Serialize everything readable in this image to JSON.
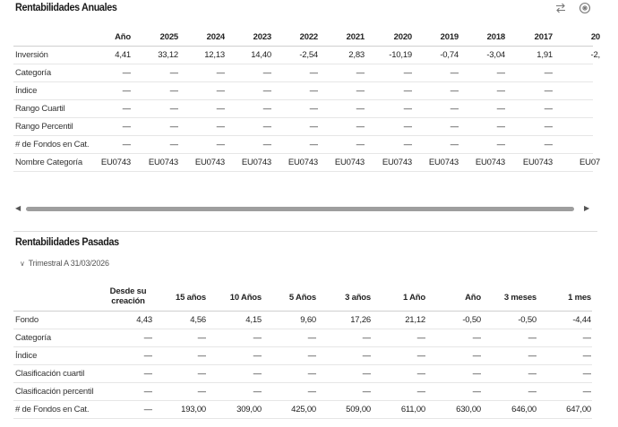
{
  "annual": {
    "title": "Rentabilidades Anuales",
    "columns": [
      "Año",
      "2025",
      "2024",
      "2023",
      "2022",
      "2021",
      "2020",
      "2019",
      "2018",
      "2017",
      "20"
    ],
    "rows": [
      {
        "label": "Inversión",
        "values": [
          "4,41",
          "33,12",
          "12,13",
          "14,40",
          "-2,54",
          "2,83",
          "-10,19",
          "-0,74",
          "-3,04",
          "1,91",
          "-2,"
        ]
      },
      {
        "label": "Categoría",
        "values": [
          "—",
          "—",
          "—",
          "—",
          "—",
          "—",
          "—",
          "—",
          "—",
          "—",
          ""
        ]
      },
      {
        "label": "Índice",
        "values": [
          "—",
          "—",
          "—",
          "—",
          "—",
          "—",
          "—",
          "—",
          "—",
          "—",
          ""
        ]
      },
      {
        "label": "Rango Cuartil",
        "values": [
          "—",
          "—",
          "—",
          "—",
          "—",
          "—",
          "—",
          "—",
          "—",
          "—",
          ""
        ]
      },
      {
        "label": "Rango Percentil",
        "values": [
          "—",
          "—",
          "—",
          "—",
          "—",
          "—",
          "—",
          "—",
          "—",
          "—",
          ""
        ]
      },
      {
        "label": "# de Fondos en Cat.",
        "values": [
          "—",
          "—",
          "—",
          "—",
          "—",
          "—",
          "—",
          "—",
          "—",
          "—",
          ""
        ]
      },
      {
        "label": "Nombre Categoría",
        "values": [
          "EU0743",
          "EU0743",
          "EU0743",
          "EU0743",
          "EU0743",
          "EU0743",
          "EU0743",
          "EU0743",
          "EU0743",
          "EU0743",
          "EU07"
        ]
      }
    ]
  },
  "past": {
    "title": "Rentabilidades Pasadas",
    "period": "Trimestral A 31/03/2026",
    "columns": [
      "Desde su creación",
      "15 años",
      "10 Años",
      "5 Años",
      "3 años",
      "1 Año",
      "Año",
      "3 meses",
      "1 mes"
    ],
    "rows": [
      {
        "label": "Fondo",
        "values": [
          "4,43",
          "4,56",
          "4,15",
          "9,60",
          "17,26",
          "21,12",
          "-0,50",
          "-0,50",
          "-4,44"
        ]
      },
      {
        "label": "Categoría",
        "values": [
          "—",
          "—",
          "—",
          "—",
          "—",
          "—",
          "—",
          "—",
          "—"
        ]
      },
      {
        "label": "Índice",
        "values": [
          "—",
          "—",
          "—",
          "—",
          "—",
          "—",
          "—",
          "—",
          "—"
        ]
      },
      {
        "label": "Clasificación cuartil",
        "values": [
          "—",
          "—",
          "—",
          "—",
          "—",
          "—",
          "—",
          "—",
          "—"
        ]
      },
      {
        "label": "Clasificación percentil",
        "values": [
          "—",
          "—",
          "—",
          "—",
          "—",
          "—",
          "—",
          "—",
          "—"
        ]
      },
      {
        "label": "# de Fondos en Cat.",
        "values": [
          "—",
          "193,00",
          "309,00",
          "425,00",
          "509,00",
          "611,00",
          "630,00",
          "646,00",
          "647,00"
        ]
      }
    ]
  },
  "icons": {
    "swap": "swap-arrows-icon",
    "settings": "settings-icon",
    "chevron": "chevron-down-icon"
  }
}
